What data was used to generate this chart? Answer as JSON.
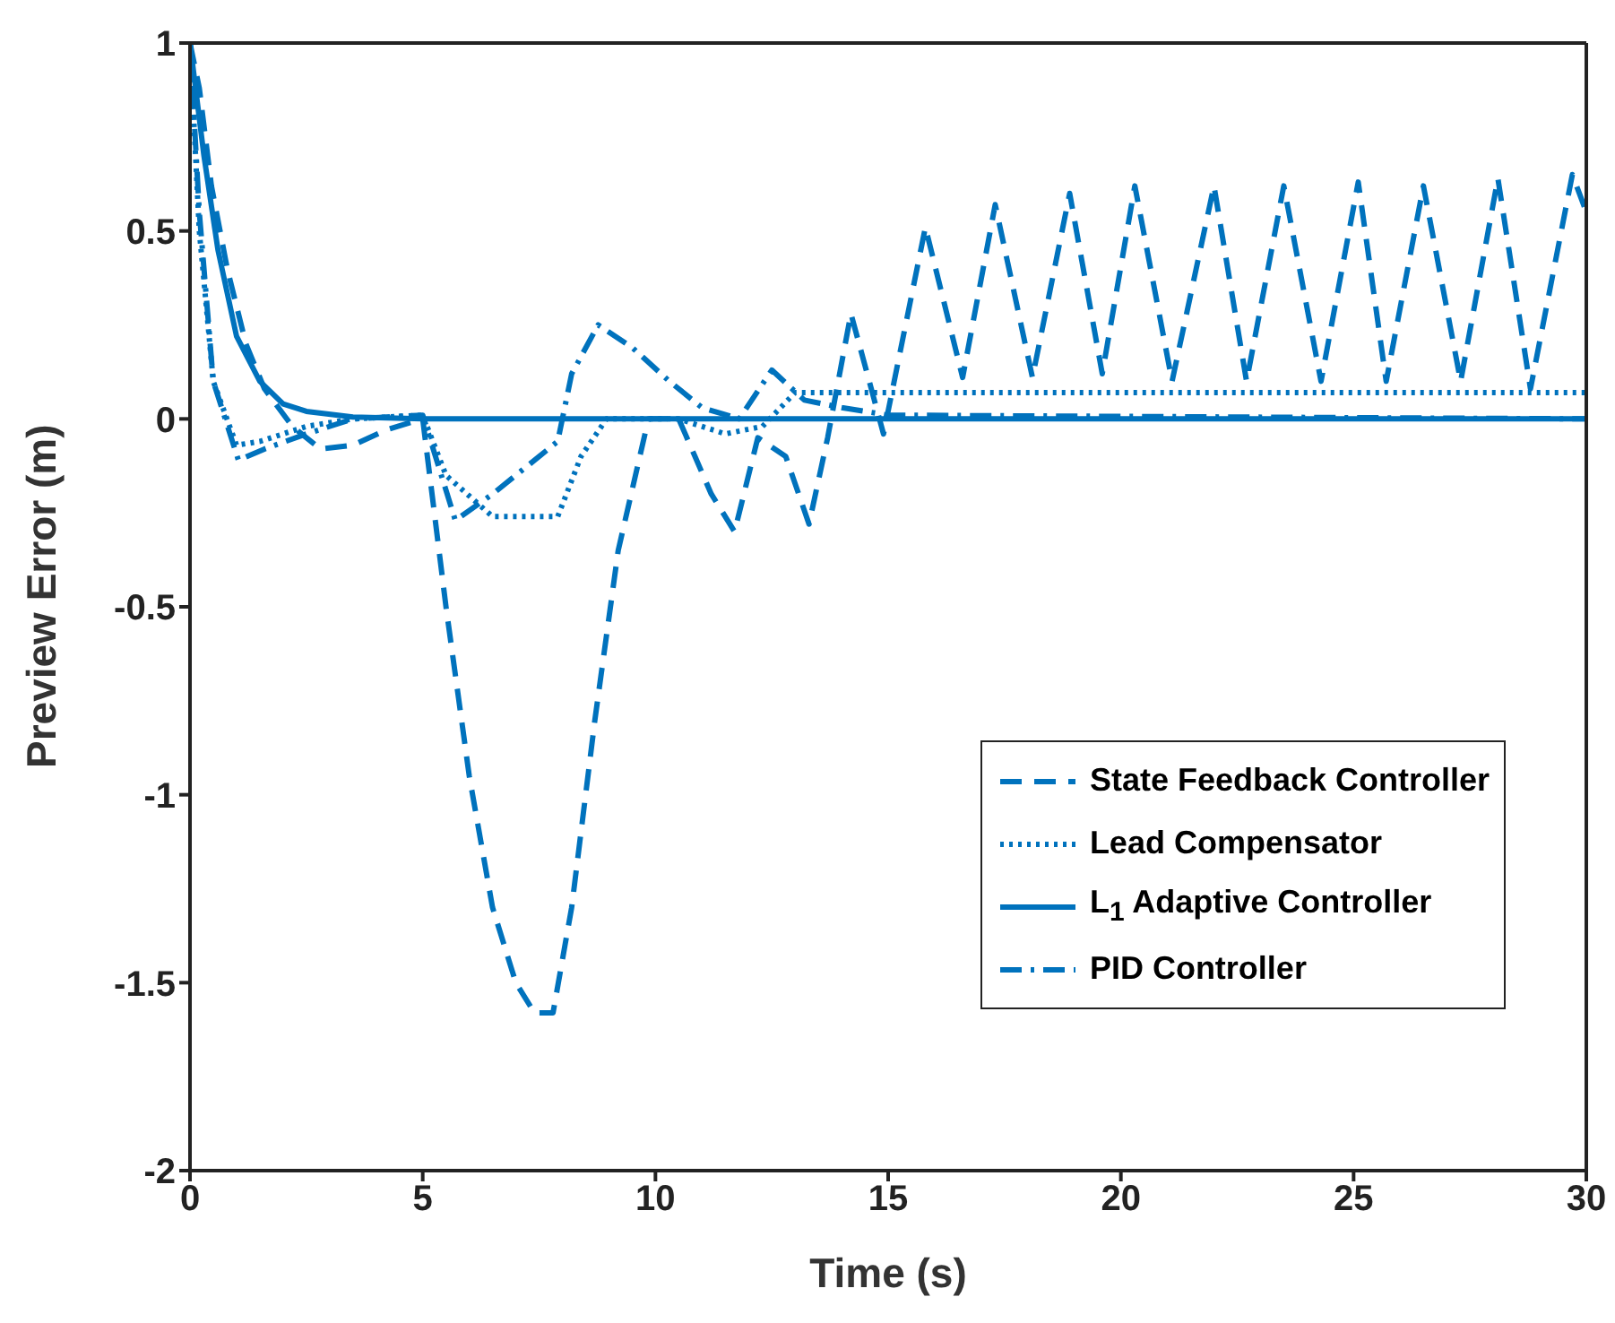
{
  "chart_data": {
    "type": "line",
    "xlabel": "Time (s)",
    "ylabel": "Preview Error (m)",
    "xlim": [
      0,
      30
    ],
    "ylim": [
      -2,
      1
    ],
    "xticks": [
      0,
      5,
      10,
      15,
      20,
      25,
      30
    ],
    "yticks": [
      -2,
      -1.5,
      -1,
      -0.5,
      0,
      0.5,
      1
    ],
    "legend": "bottom right",
    "marker": "none",
    "series": [
      {
        "name": "State Feedback Controller",
        "color": "#0072bd",
        "line_style": "dashed",
        "x": [
          0,
          0.2,
          0.46,
          0.8,
          1.2,
          1.6,
          2.2,
          2.8,
          3.5,
          4.2,
          5,
          5.5,
          6,
          6.5,
          7,
          7.4,
          7.8,
          8.2,
          8.7,
          9.2,
          9.85,
          10.5,
          11.2,
          11.7,
          12.2,
          12.8,
          13.3,
          13.7,
          14.2,
          14.9,
          15.8,
          16.6,
          17.3,
          18.1,
          18.9,
          19.6,
          20.3,
          21.1,
          22,
          22.7,
          23.5,
          24.3,
          25.1,
          25.7,
          26.5,
          27.3,
          28.1,
          28.8,
          29.7,
          30
        ],
        "values": [
          1,
          0.88,
          0.62,
          0.4,
          0.2,
          0.08,
          -0.02,
          -0.08,
          -0.07,
          -0.03,
          0,
          -0.5,
          -0.95,
          -1.3,
          -1.5,
          -1.58,
          -1.58,
          -1.3,
          -0.8,
          -0.35,
          0,
          0,
          -0.2,
          -0.3,
          -0.05,
          -0.1,
          -0.28,
          -0.05,
          0.28,
          -0.04,
          0.51,
          0.11,
          0.57,
          0.11,
          0.6,
          0.12,
          0.62,
          0.1,
          0.62,
          0.1,
          0.62,
          0.1,
          0.63,
          0.1,
          0.62,
          0.1,
          0.64,
          0.08,
          0.65,
          0.55
        ]
      },
      {
        "name": "Lead Compensator",
        "color": "#0072bd",
        "line_style": "dotted",
        "x": [
          0,
          0.2,
          0.5,
          1,
          1.5,
          2.5,
          3.5,
          5,
          5.5,
          6.5,
          7.9,
          8.4,
          8.95,
          10.5,
          11.5,
          12.3,
          13,
          15,
          30
        ],
        "values": [
          1,
          0.5,
          0.1,
          -0.07,
          -0.06,
          -0.02,
          0,
          0.01,
          -0.15,
          -0.26,
          -0.26,
          -0.1,
          0,
          0,
          -0.04,
          -0.02,
          0.07,
          0.07,
          0.07
        ]
      },
      {
        "name": "L$_{1}$ Adaptive Controller",
        "color": "#0072bd",
        "line_style": "solid",
        "x": [
          0,
          0.3,
          0.6,
          1,
          1.5,
          2,
          2.5,
          3.5,
          5,
          30
        ],
        "values": [
          1,
          0.7,
          0.45,
          0.22,
          0.1,
          0.04,
          0.02,
          0.005,
          0,
          0
        ]
      },
      {
        "name": "PID Controller",
        "color": "#0072bd",
        "line_style": "dashdot",
        "x": [
          0,
          0.2,
          0.5,
          1.04,
          1.6,
          2.5,
          3.5,
          5,
          5.7,
          6.5,
          7.3,
          7.9,
          8.2,
          8.77,
          9.5,
          10.3,
          11,
          11.8,
          12.5,
          13.2,
          14,
          15,
          30
        ],
        "values": [
          1,
          0.55,
          0.1,
          -0.11,
          -0.08,
          -0.04,
          0,
          0.01,
          -0.27,
          -0.2,
          -0.12,
          -0.06,
          0.12,
          0.25,
          0.19,
          0.1,
          0.03,
          0,
          0.13,
          0.05,
          0.03,
          0.01,
          0
        ]
      }
    ]
  }
}
